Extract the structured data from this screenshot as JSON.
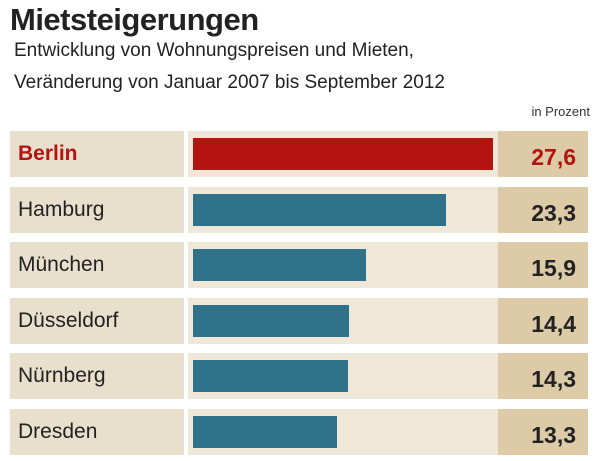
{
  "chart_data": {
    "type": "bar",
    "title": "Mietsteigerungen",
    "subtitle": [
      "Entwicklung von Wohnungspreisen und Mieten,",
      "Veränderung von Januar 2007 bis September 2012"
    ],
    "unit": "in Prozent",
    "categories": [
      "Berlin",
      "Hamburg",
      "München",
      "Düsseldorf",
      "Nürnberg",
      "Dresden"
    ],
    "values": [
      27.6,
      23.3,
      15.9,
      14.4,
      14.3,
      13.3
    ],
    "labels": [
      "27,6",
      "23,3",
      "15,9",
      "14,4",
      "14,3",
      "13,3"
    ],
    "highlight": "Berlin",
    "colors": {
      "highlight": "#b5130f",
      "default": "#2f7289"
    },
    "xlim": [
      0,
      28
    ]
  }
}
